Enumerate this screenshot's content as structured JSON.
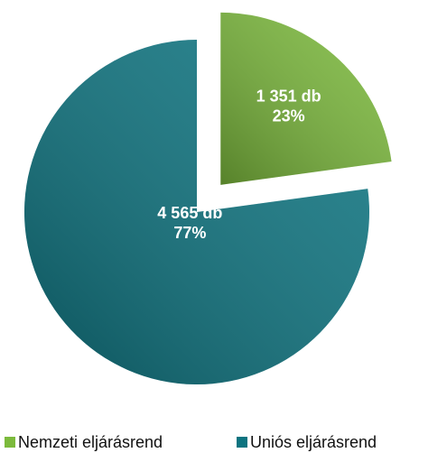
{
  "chart_data": {
    "type": "pie",
    "categories": [
      "Nemzeti eljárásrend",
      "Uniós eljárásrend"
    ],
    "values": [
      1351,
      4565
    ],
    "value_labels": [
      "1 351 db",
      "4 565 db"
    ],
    "percentages": [
      23,
      77
    ],
    "percentage_labels": [
      "23%",
      "77%"
    ],
    "colors": [
      "#7cba3c",
      "#0c7480"
    ],
    "legend": "bottom"
  }
}
